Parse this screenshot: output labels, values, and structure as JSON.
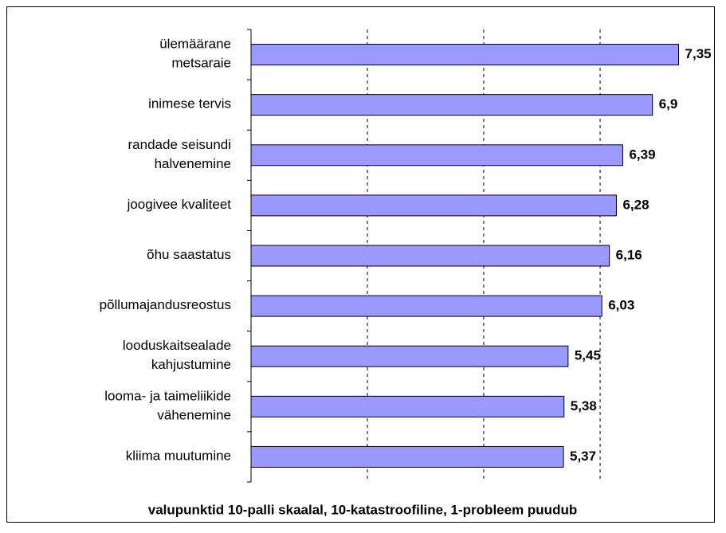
{
  "chart_data": {
    "type": "barh",
    "categories": [
      [
        "ülemäärane",
        "metsaraie"
      ],
      [
        "inimese tervis"
      ],
      [
        "randade seisundi",
        "halvenemine"
      ],
      [
        "joogivee kvaliteet"
      ],
      [
        "õhu saastatus"
      ],
      [
        "põllumajandusreostus"
      ],
      [
        "looduskaitsealade",
        "kahjustumine"
      ],
      [
        "looma- ja taimeliikide",
        "vähenemine"
      ],
      [
        "kliima muutumine"
      ]
    ],
    "values": [
      7.35,
      6.9,
      6.39,
      6.28,
      6.16,
      6.03,
      5.45,
      5.38,
      5.37
    ],
    "value_labels": [
      "7,35",
      "6,9",
      "6,39",
      "6,28",
      "6,16",
      "6,03",
      "5,45",
      "5,38",
      "5,37"
    ],
    "color": "#9999ff",
    "xlim": [
      0,
      8
    ],
    "xticks": [
      2,
      4,
      6
    ],
    "grid": true,
    "tick_labels": false,
    "xlabel": "valupunktid 10-palli skaalal, 10-katastroofiline, 1-probleem puudub"
  }
}
